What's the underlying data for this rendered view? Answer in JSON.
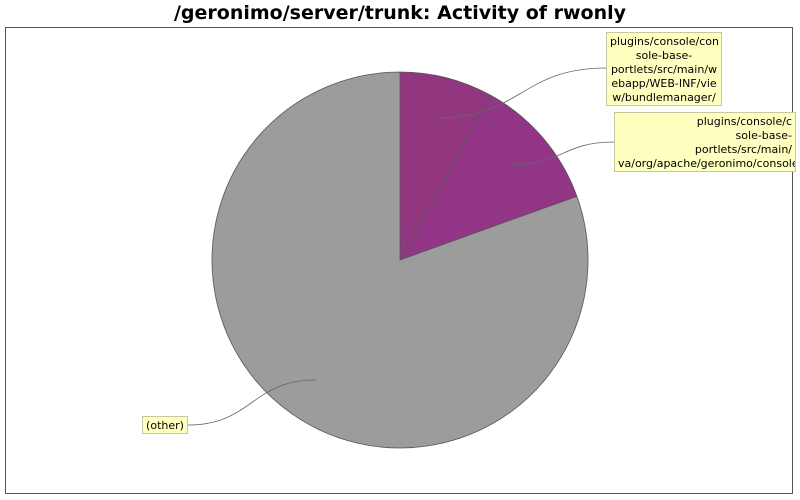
{
  "chart_data": {
    "type": "pie",
    "title": "/geronimo/server/trunk: Activity of rwonly",
    "slices": [
      {
        "label": "plugins/console/console-base-portlets/src/main/webapp/WEB-INF/view/bundlemanager/",
        "display": "plugins/console/con\nsole-base-\nportlets/src/main/w\nebapp/WEB-INF/vie\nw/bundlemanager/",
        "value": 8,
        "color": "#933680"
      },
      {
        "label": "plugins/console/console-base-portlets/src/main/java/org/apache/geronimo/console/",
        "display": "plugins/console/c\nsole-base-\nportlets/src/main/\nva/org/apache/geronimo/console",
        "value": 11.5,
        "color": "#923586"
      },
      {
        "label": "(other)",
        "display": "(other)",
        "value": 80.5,
        "color": "#9c9c9c"
      }
    ],
    "start_angle_deg": 90,
    "direction": "clockwise"
  }
}
